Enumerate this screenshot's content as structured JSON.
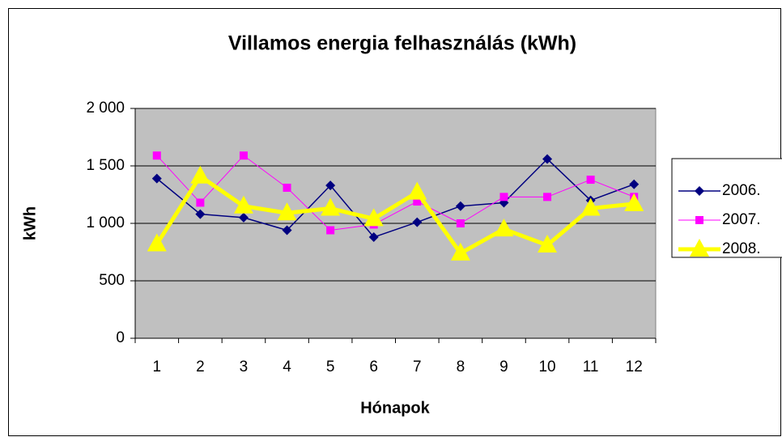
{
  "chart_data": {
    "type": "line",
    "title": "Villamos energia felhasználás (kWh)",
    "x_label": "Hónapok",
    "y_label": "kWh",
    "categories": [
      "1",
      "2",
      "3",
      "4",
      "5",
      "6",
      "7",
      "8",
      "9",
      "10",
      "11",
      "12"
    ],
    "series": [
      {
        "name": "2006.",
        "color": "#000080",
        "marker": "diamond",
        "line_width": 1.5,
        "values": [
          1390,
          1080,
          1050,
          940,
          1330,
          880,
          1010,
          1150,
          1180,
          1560,
          1200,
          1340
        ]
      },
      {
        "name": "2007.",
        "color": "#ff00ff",
        "marker": "square",
        "line_width": 1,
        "values": [
          1590,
          1180,
          1590,
          1310,
          940,
          990,
          1190,
          1000,
          1230,
          1230,
          1380,
          1230
        ]
      },
      {
        "name": "2008.",
        "color": "#ffff00",
        "marker": "triangle",
        "line_width": 5,
        "values": [
          820,
          1410,
          1150,
          1090,
          1130,
          1040,
          1270,
          740,
          950,
          810,
          1130,
          1170
        ]
      }
    ],
    "ylim": [
      0,
      2000
    ],
    "yticks": [
      0,
      500,
      {
        "value": 1000,
        "label": "1 000"
      },
      {
        "value": 1500,
        "label": "1 500"
      },
      {
        "value": 2000,
        "label": "2 000"
      }
    ],
    "grid": true,
    "plot_background": "#c0c0c0",
    "legend": "right"
  }
}
